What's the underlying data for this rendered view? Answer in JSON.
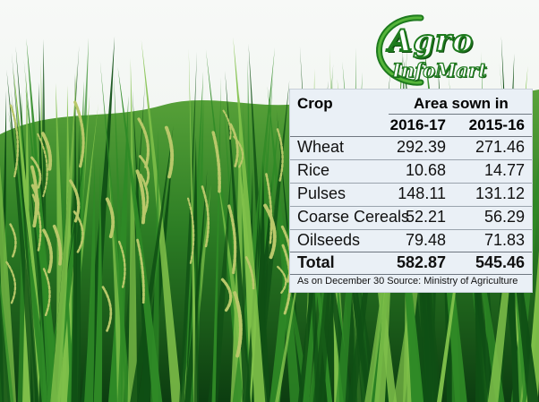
{
  "logo": {
    "line1": "Agro",
    "line2": "InfoMart"
  },
  "table": {
    "header": {
      "crop": "Crop",
      "area": "Area sown in",
      "year1": "2016-17",
      "year2": "2015-16"
    },
    "rows": [
      {
        "crop": "Wheat",
        "y2016_17": "292.39",
        "y2015_16": "271.46"
      },
      {
        "crop": "Rice",
        "y2016_17": "10.68",
        "y2015_16": "14.77"
      },
      {
        "crop": "Pulses",
        "y2016_17": "148.11",
        "y2015_16": "131.12"
      },
      {
        "crop": "Coarse Cereals",
        "y2016_17": "52.21",
        "y2015_16": "56.29"
      },
      {
        "crop": "Oilseeds",
        "y2016_17": "79.48",
        "y2015_16": "71.83"
      }
    ],
    "total": {
      "crop": "Total",
      "y2016_17": "582.87",
      "y2015_16": "545.46"
    },
    "footnote": "As on December 30 Source: Ministry of Agriculture"
  },
  "colors": {
    "sky": "#f2f6f1",
    "grass_dark": "#0f4f14",
    "grass_mid": "#2f8a26",
    "grass_light": "#7fc04a",
    "grain": "#b9c86a",
    "table_bg": "#eaf0f6",
    "logo_green": "#1d7a1d"
  }
}
